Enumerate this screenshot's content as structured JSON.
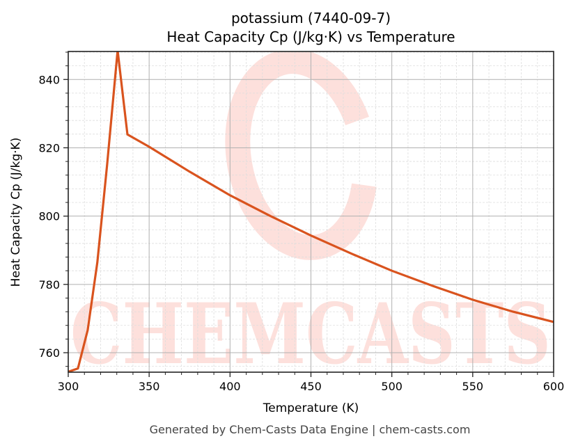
{
  "header": {
    "title_line1": "potassium (7440-09-7)",
    "title_line2": "Heat Capacity Cp (J/kg·K) vs Temperature"
  },
  "axes": {
    "xlabel": "Temperature (K)",
    "ylabel": "Heat Capacity Cp (J/kg·K)",
    "xticks": [
      "300",
      "350",
      "400",
      "450",
      "500",
      "550",
      "600"
    ],
    "yticks": [
      "760",
      "780",
      "800",
      "820",
      "840"
    ]
  },
  "footer": {
    "text": "Generated by Chem-Casts Data Engine | chem-casts.com"
  },
  "watermark": {
    "text": "CHEMCASTS",
    "color": "#fde0dc"
  },
  "colors": {
    "line": "#d9531e",
    "grid_major": "#b0b0b0",
    "grid_minor": "#dddddd"
  },
  "chart_data": {
    "type": "line",
    "title": "potassium (7440-09-7)\nHeat Capacity Cp (J/kg·K) vs Temperature",
    "xlabel": "Temperature (K)",
    "ylabel": "Heat Capacity Cp (J/kg·K)",
    "xlim": [
      300,
      600
    ],
    "ylim": [
      754.3,
      848.2
    ],
    "grid": true,
    "legend": null,
    "series": [
      {
        "name": "Cp",
        "color": "#d9531e",
        "x": [
          300,
          306,
          312,
          318,
          324,
          330.5,
          336.6,
          350,
          375,
          400,
          425,
          450,
          475,
          500,
          525,
          550,
          575,
          600
        ],
        "y": [
          754.4,
          755.4,
          766.6,
          786.5,
          815.0,
          848.5,
          823.9,
          820.3,
          813.0,
          806.1,
          800.0,
          794.3,
          789.0,
          784.0,
          779.6,
          775.5,
          772.0,
          769.0
        ]
      }
    ]
  }
}
